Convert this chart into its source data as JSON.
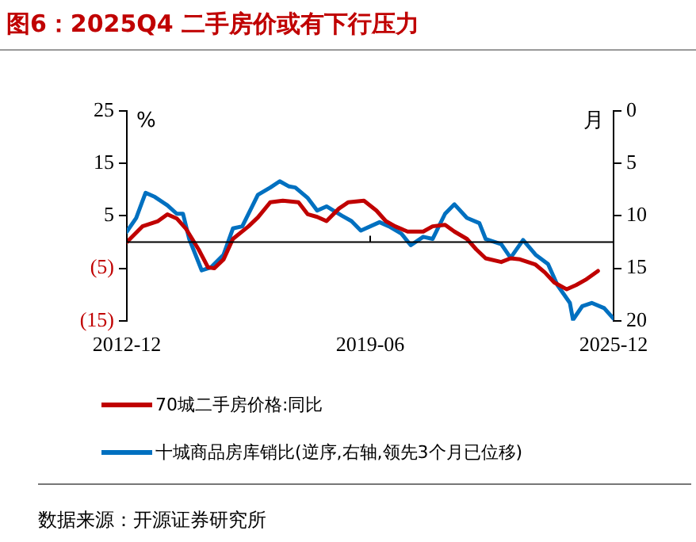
{
  "chart_data": {
    "type": "line",
    "title": "图6：2025Q4 二手房价或有下行压力",
    "ylabel": "%",
    "y2label": "月",
    "xlim": [
      "2012-12",
      "2025-12"
    ],
    "xticks": [
      "2012-12",
      "2019-06",
      "2025-12"
    ],
    "ylim": [
      -15,
      25
    ],
    "yticks": [
      25,
      15,
      5,
      {
        "value": -5,
        "label": "(5)"
      },
      {
        "value": -15,
        "label": "(15)"
      }
    ],
    "y2lim": [
      20,
      0
    ],
    "y2ticks": [
      0,
      5,
      10,
      15,
      20
    ],
    "grid": false,
    "legend": "bottom",
    "marker": "none",
    "line_style": "solid",
    "annotations": [
      "数据来源：开源证券研究所"
    ],
    "series": [
      {
        "name": "70城二手房价格:同比",
        "color": "#c00000",
        "x": [
          "2012-12",
          "2013-05",
          "2013-10",
          "2014-01",
          "2014-04",
          "2014-07",
          "2014-11",
          "2015-02",
          "2015-04",
          "2015-07",
          "2015-10",
          "2016-03",
          "2016-06",
          "2016-10",
          "2017-02",
          "2017-07",
          "2017-10",
          "2018-01",
          "2018-04",
          "2018-08",
          "2018-11",
          "2019-04",
          "2019-08",
          "2019-11",
          "2020-02",
          "2020-06",
          "2020-11",
          "2021-02",
          "2021-06",
          "2021-09",
          "2022-01",
          "2022-04",
          "2022-07",
          "2022-12",
          "2023-03",
          "2023-06",
          "2023-11",
          "2024-02",
          "2024-05",
          "2024-09",
          "2024-12",
          "2025-03",
          "2025-07"
        ],
        "values": [
          0,
          3,
          4,
          5.3,
          4.5,
          2.5,
          -1.4,
          -4.8,
          -5,
          -3.3,
          0.6,
          3,
          4.7,
          7.6,
          7.9,
          7.6,
          5.3,
          4.8,
          4,
          6.4,
          7.6,
          7.9,
          6,
          4,
          3,
          2,
          2,
          3,
          3.3,
          2,
          0.6,
          -1.4,
          -3.1,
          -3.8,
          -3.1,
          -3.3,
          -4.3,
          -5.8,
          -7.7,
          -9,
          -8.2,
          -7.2,
          -5.5
        ]
      },
      {
        "name": "十城商品房库销比(逆序,右轴,领先3个月已位移)",
        "color": "#0070c0",
        "axis": "y2",
        "x": [
          "2012-12",
          "2013-03",
          "2013-06",
          "2013-09",
          "2014-01",
          "2014-04",
          "2014-06",
          "2014-08",
          "2014-12",
          "2015-03",
          "2015-07",
          "2015-10",
          "2016-01",
          "2016-06",
          "2016-10",
          "2017-01",
          "2017-04",
          "2017-06",
          "2017-10",
          "2018-01",
          "2018-04",
          "2018-09",
          "2018-12",
          "2019-03",
          "2019-09",
          "2019-12",
          "2020-04",
          "2020-07",
          "2020-11",
          "2021-02",
          "2021-06",
          "2021-09",
          "2022-01",
          "2022-05",
          "2022-07",
          "2022-12",
          "2023-03",
          "2023-07",
          "2023-11",
          "2024-03",
          "2024-06",
          "2024-10",
          "2024-11",
          "2025-02",
          "2025-05",
          "2025-09",
          "2025-12"
        ],
        "values": [
          11.5,
          10.2,
          7.8,
          8.2,
          9,
          9.8,
          9.8,
          12.2,
          15.2,
          14.9,
          13.7,
          11.2,
          11,
          8,
          7.3,
          6.7,
          7.2,
          7.3,
          8.3,
          9.5,
          9.1,
          10,
          10.5,
          11.4,
          10.6,
          11,
          11.7,
          12.8,
          12,
          12.2,
          9.8,
          8.9,
          10.2,
          10.7,
          12.2,
          12.7,
          14,
          12.3,
          13.7,
          14.6,
          16.6,
          18.3,
          19.9,
          18.6,
          18.3,
          18.8,
          19.8
        ]
      }
    ]
  }
}
